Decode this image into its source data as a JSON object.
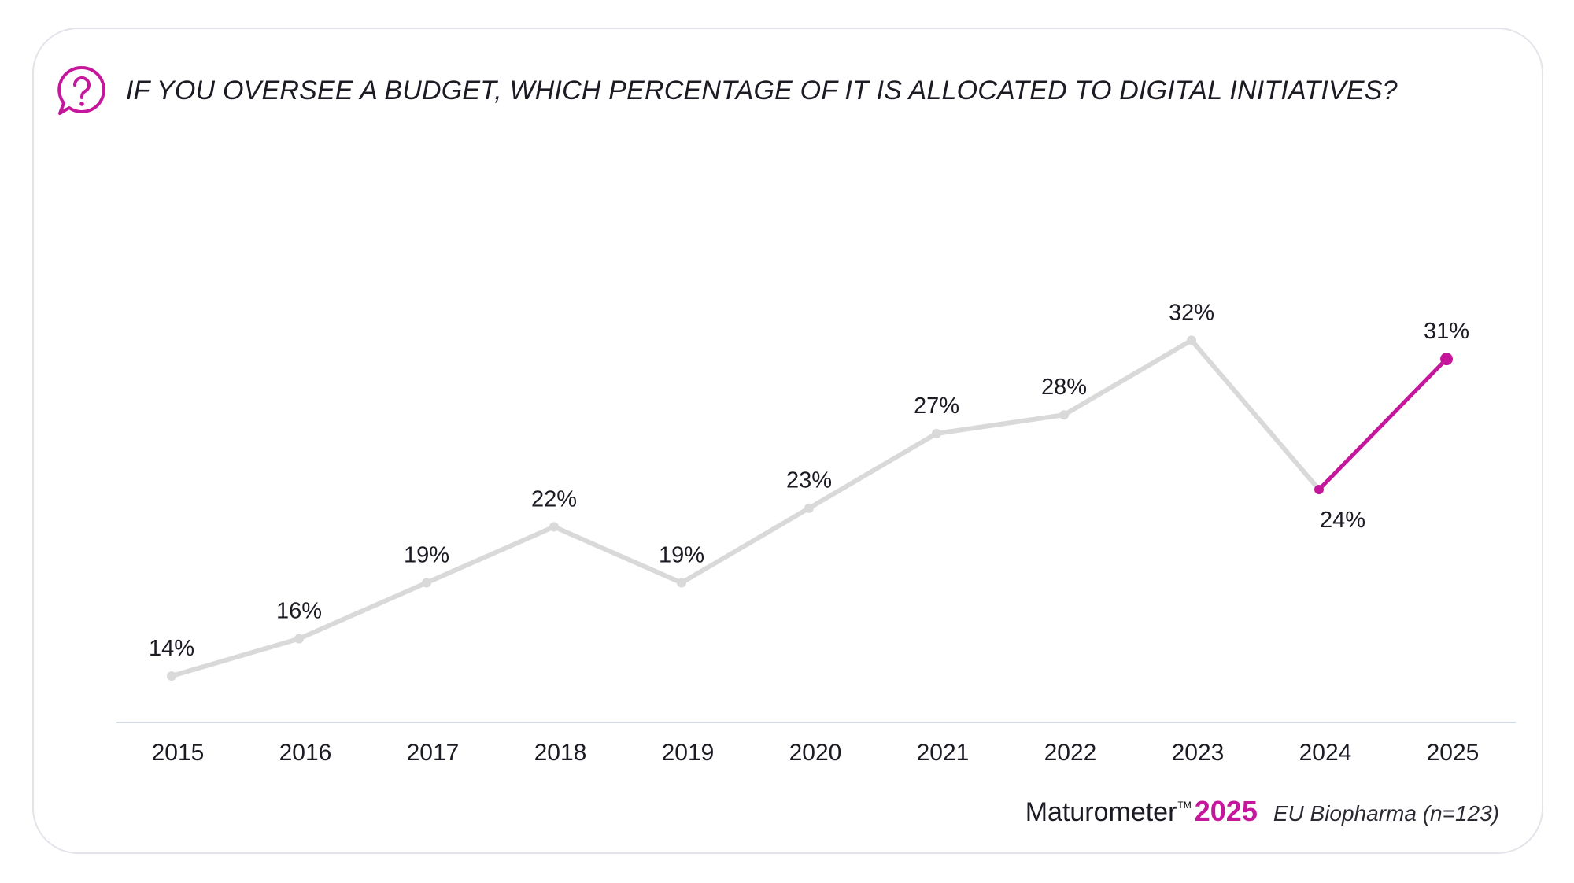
{
  "question": "IF YOU OVERSEE A BUDGET, WHICH PERCENTAGE OF IT IS ALLOCATED TO DIGITAL INITIATIVES?",
  "icon": "question-bubble-icon",
  "colors": {
    "accent": "#c4179c",
    "series": "#d9d9d9",
    "axis": "#d4dde5",
    "text": "#1b1b24"
  },
  "chart_data": {
    "type": "line",
    "title": "IF YOU OVERSEE A BUDGET, WHICH PERCENTAGE OF IT IS ALLOCATED TO DIGITAL INITIATIVES?",
    "xlabel": "",
    "ylabel": "",
    "categories": [
      "2015",
      "2016",
      "2017",
      "2018",
      "2019",
      "2020",
      "2021",
      "2022",
      "2023",
      "2024",
      "2025"
    ],
    "values": [
      14,
      16,
      19,
      22,
      19,
      23,
      27,
      28,
      32,
      24,
      31
    ],
    "data_labels": [
      "14%",
      "16%",
      "19%",
      "22%",
      "19%",
      "23%",
      "27%",
      "28%",
      "32%",
      "24%",
      "31%"
    ],
    "highlight_from_index": 9,
    "grid": false,
    "legend": "none"
  },
  "footer": {
    "brand": "Maturometer",
    "trademark": "TM",
    "year": "2025",
    "sample": "EU Biopharma (n=123)"
  }
}
